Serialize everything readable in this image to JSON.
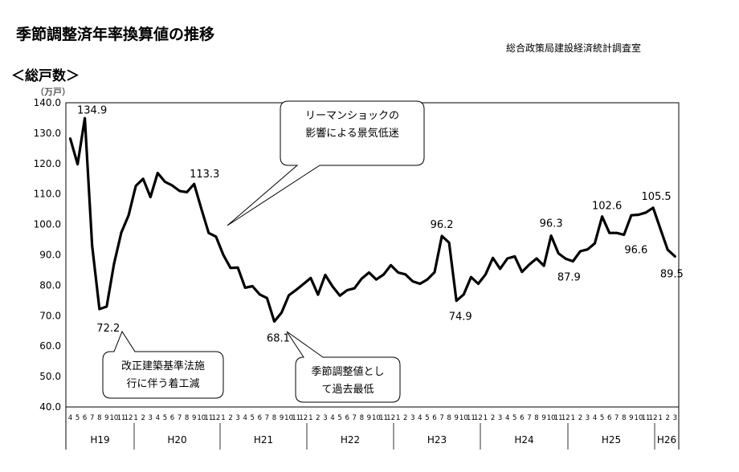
{
  "header": {
    "title": "季節調整済年率換算値の推移",
    "office": "総合政策局建設経済統計調査室",
    "subtitle": "＜総戸数＞",
    "unit": "（万戸）"
  },
  "chart_data": {
    "type": "line",
    "title": "季節調整済年率換算値の推移",
    "ylabel": "（万戸）",
    "ylim": [
      40,
      140
    ],
    "yticks": [
      "40.0",
      "50.0",
      "60.0",
      "70.0",
      "80.0",
      "90.0",
      "100.0",
      "110.0",
      "120.0",
      "130.0",
      "140.0"
    ],
    "x": [
      "4",
      "5",
      "6",
      "7",
      "8",
      "9",
      "10",
      "11",
      "12",
      "1",
      "2",
      "3",
      "4",
      "5",
      "6",
      "7",
      "8",
      "9",
      "10",
      "11",
      "12",
      "1",
      "2",
      "3",
      "4",
      "5",
      "6",
      "7",
      "8",
      "9",
      "10",
      "11",
      "12",
      "1",
      "2",
      "3",
      "4",
      "5",
      "6",
      "7",
      "8",
      "9",
      "10",
      "11",
      "12",
      "1",
      "2",
      "3",
      "4",
      "5",
      "6",
      "7",
      "8",
      "9",
      "10",
      "11",
      "12",
      "1",
      "2",
      "3",
      "4",
      "5",
      "6",
      "7",
      "8",
      "9",
      "10",
      "11",
      "12",
      "1",
      "2",
      "3",
      "4",
      "5",
      "6",
      "7",
      "8",
      "9",
      "10",
      "11",
      "12",
      "1",
      "2",
      "3"
    ],
    "periods": [
      "H19",
      "H20",
      "H21",
      "H22",
      "H23",
      "H24",
      "H25",
      "H26"
    ],
    "series": [
      {
        "name": "総戸数",
        "values": [
          128.2,
          119.8,
          134.9,
          93.0,
          72.2,
          73.0,
          87.0,
          97.3,
          103.0,
          112.7,
          115.0,
          109.0,
          116.9,
          114.0,
          112.8,
          111.0,
          110.6,
          113.3,
          105.0,
          97.2,
          96.0,
          90.0,
          85.7,
          85.8,
          79.2,
          79.7,
          77.0,
          75.8,
          68.1,
          71.0,
          76.7,
          78.5,
          80.4,
          82.4,
          76.9,
          83.4,
          79.6,
          76.6,
          78.4,
          79.0,
          82.2,
          84.2,
          81.9,
          83.5,
          86.6,
          84.2,
          83.6,
          81.3,
          80.5,
          81.9,
          84.3,
          96.2,
          94.0,
          74.9,
          77.0,
          82.7,
          80.5,
          83.6,
          89.0,
          85.4,
          88.8,
          89.5,
          84.4,
          86.8,
          88.8,
          86.4,
          96.3,
          90.5,
          88.7,
          87.9,
          91.2,
          91.8,
          93.8,
          102.6,
          97.2,
          97.2,
          96.6,
          103.0,
          103.2,
          103.9,
          105.5,
          98.5,
          91.7,
          89.5
        ]
      }
    ],
    "annotations": {
      "points": [
        "134.9",
        "72.2",
        "113.3",
        "68.1",
        "96.2",
        "74.9",
        "96.3",
        "87.9",
        "102.6",
        "96.6",
        "105.5",
        "89.5"
      ],
      "callout1": [
        "リーマンショックの",
        "影響による景気低迷"
      ],
      "callout2": [
        "改正建築基準法施",
        "行に伴う着工減"
      ],
      "callout3": [
        "季節調整値とし",
        "て過去最低"
      ]
    }
  }
}
